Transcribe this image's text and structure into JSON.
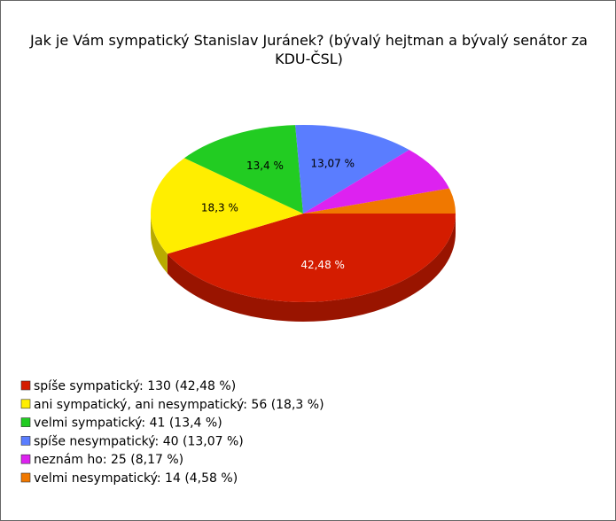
{
  "chart_data": {
    "type": "pie",
    "title": "Jak je Vám sympatický Stanislav Juránek? (bývalý hejtman a bývalý senátor za KDU-ČSL)",
    "legend": [
      "spíše sympatický: 130 (42,48 %)",
      "ani sympatický, ani nesympatický: 56 (18,3 %)",
      "velmi sympatický: 41 (13,4 %)",
      "spíše nesympatický: 40 (13,07 %)",
      "neznám ho: 25 (8,17 %)",
      "velmi nesympatický: 14 (4,58 %)"
    ],
    "values": [
      42.48,
      18.3,
      13.4,
      13.07,
      8.17,
      4.58
    ],
    "value_labels": [
      "42,48 %",
      "18,3 %",
      "13,4 %",
      "13,07 %",
      null,
      null
    ],
    "colors": [
      "#d41c00",
      "#ffee00",
      "#22cc22",
      "#5a7dff",
      "#dd22f0",
      "#f07800"
    ]
  }
}
